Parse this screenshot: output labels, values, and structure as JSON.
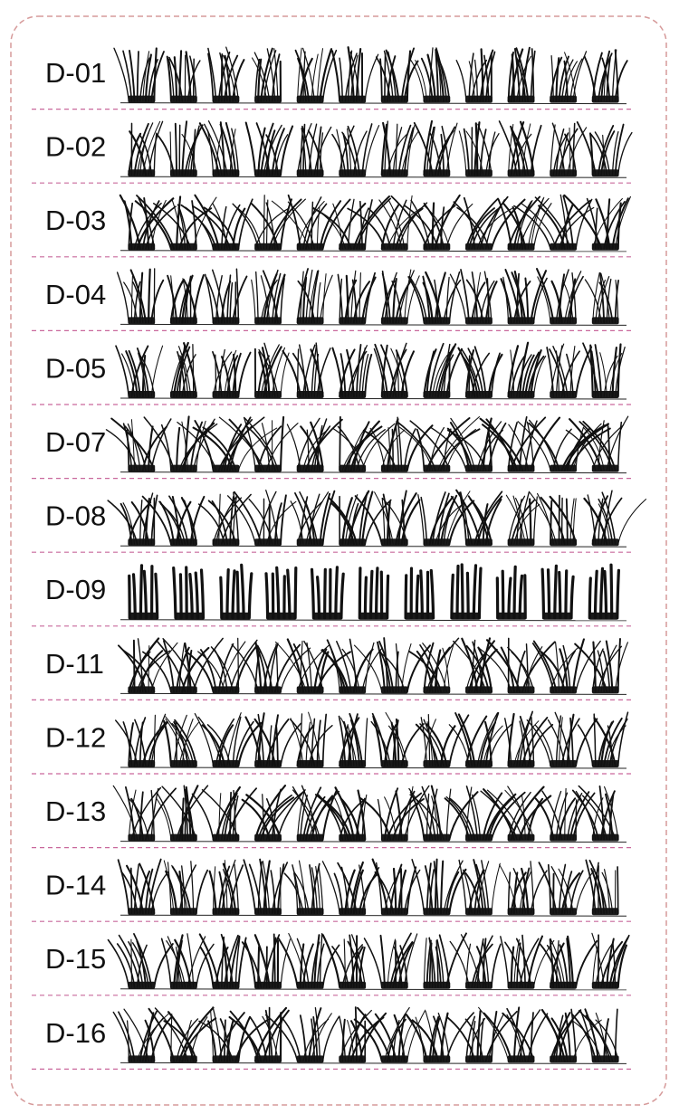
{
  "items": [
    {
      "label": "D-01"
    },
    {
      "label": "D-02"
    },
    {
      "label": "D-03"
    },
    {
      "label": "D-04"
    },
    {
      "label": "D-05"
    },
    {
      "label": "D-07"
    },
    {
      "label": "D-08"
    },
    {
      "label": "D-09"
    },
    {
      "label": "D-11"
    },
    {
      "label": "D-12"
    },
    {
      "label": "D-13"
    },
    {
      "label": "D-14"
    },
    {
      "label": "D-15"
    },
    {
      "label": "D-16"
    }
  ]
}
